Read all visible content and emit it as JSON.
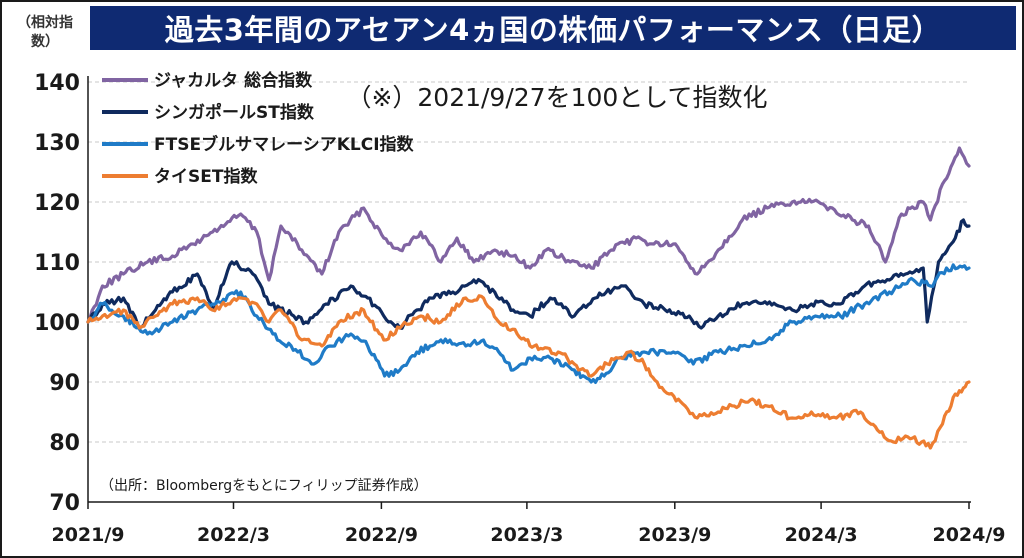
{
  "title": "過去3年間のアセアン4ヵ国の株価パフォーマンス（日足）",
  "y_unit": "（相対指数）",
  "note": "（※）2021/9/27を100として指数化",
  "source": "（出所：Bloombergをもとにフィリップ証券作成）",
  "colors": {
    "title_bg": "#0f2a72",
    "grid": "#c8c8c8",
    "axis": "#1a1a1a"
  },
  "chart_data": {
    "type": "line",
    "ylim": [
      70,
      140
    ],
    "y_ticks": [
      70,
      80,
      90,
      100,
      110,
      120,
      130,
      140
    ],
    "y_tick_labels": [
      "70",
      "80",
      "90",
      "100",
      "110",
      "120",
      "130",
      "140"
    ],
    "xlim": [
      "2021-09-27",
      "2024-09-27"
    ],
    "x_ticks": [
      "2021-09",
      "2022-03",
      "2022-09",
      "2023-03",
      "2023-09",
      "2024-03",
      "2024-09"
    ],
    "x_tick_labels": [
      "2021/9",
      "2022/3",
      "2022/9",
      "2023/3",
      "2023/9",
      "2024/3",
      "2024/9"
    ],
    "grid": "horizontal dashed",
    "legend_position": "top-left",
    "series": [
      {
        "name": "ジャカルタ 総合指数",
        "color": "#8064a2",
        "points": [
          [
            "2021-09-27",
            100
          ],
          [
            "2021-10-15",
            106
          ],
          [
            "2021-11-10",
            108
          ],
          [
            "2021-12-10",
            110
          ],
          [
            "2022-01-10",
            111
          ],
          [
            "2022-02-05",
            113
          ],
          [
            "2022-03-01",
            115
          ],
          [
            "2022-04-05",
            118
          ],
          [
            "2022-04-25",
            115
          ],
          [
            "2022-05-10",
            107
          ],
          [
            "2022-05-25",
            116
          ],
          [
            "2022-06-20",
            112
          ],
          [
            "2022-07-15",
            108
          ],
          [
            "2022-08-05",
            115
          ],
          [
            "2022-09-05",
            119
          ],
          [
            "2022-09-30",
            114
          ],
          [
            "2022-10-20",
            112
          ],
          [
            "2022-11-15",
            115
          ],
          [
            "2022-12-10",
            110
          ],
          [
            "2022-12-30",
            114
          ],
          [
            "2023-01-20",
            110
          ],
          [
            "2023-02-15",
            112
          ],
          [
            "2023-03-10",
            111
          ],
          [
            "2023-03-31",
            109
          ],
          [
            "2023-04-20",
            112
          ],
          [
            "2023-05-20",
            110
          ],
          [
            "2023-06-15",
            109
          ],
          [
            "2023-07-10",
            112
          ],
          [
            "2023-08-10",
            114
          ],
          [
            "2023-09-01",
            113
          ],
          [
            "2023-09-25",
            113
          ],
          [
            "2023-10-25",
            108
          ],
          [
            "2023-11-20",
            112
          ],
          [
            "2023-12-20",
            117
          ],
          [
            "2024-01-20",
            119
          ],
          [
            "2024-02-20",
            120
          ],
          [
            "2024-03-15",
            120
          ],
          [
            "2024-04-10",
            119
          ],
          [
            "2024-05-05",
            117
          ],
          [
            "2024-05-25",
            116
          ],
          [
            "2024-06-15",
            110
          ],
          [
            "2024-07-05",
            118
          ],
          [
            "2024-08-01",
            120
          ],
          [
            "2024-08-10",
            117
          ],
          [
            "2024-08-25",
            123
          ],
          [
            "2024-09-15",
            129
          ],
          [
            "2024-09-27",
            126
          ]
        ]
      },
      {
        "name": "シンガポールST指数",
        "color": "#0f2a5e",
        "points": [
          [
            "2021-09-27",
            100
          ],
          [
            "2021-10-15",
            103
          ],
          [
            "2021-11-10",
            104
          ],
          [
            "2021-11-30",
            99
          ],
          [
            "2021-12-20",
            102
          ],
          [
            "2022-01-10",
            105
          ],
          [
            "2022-02-10",
            108
          ],
          [
            "2022-03-01",
            102
          ],
          [
            "2022-03-25",
            110
          ],
          [
            "2022-04-20",
            108
          ],
          [
            "2022-05-10",
            103
          ],
          [
            "2022-06-10",
            101
          ],
          [
            "2022-06-25",
            100
          ],
          [
            "2022-07-20",
            103
          ],
          [
            "2022-08-20",
            106
          ],
          [
            "2022-09-10",
            104
          ],
          [
            "2022-09-30",
            101
          ],
          [
            "2022-10-20",
            99
          ],
          [
            "2022-11-10",
            102
          ],
          [
            "2022-12-01",
            104
          ],
          [
            "2022-12-25",
            105
          ],
          [
            "2023-01-20",
            107
          ],
          [
            "2023-02-15",
            105
          ],
          [
            "2023-03-10",
            102
          ],
          [
            "2023-03-31",
            101
          ],
          [
            "2023-04-25",
            104
          ],
          [
            "2023-05-25",
            101
          ],
          [
            "2023-06-20",
            104
          ],
          [
            "2023-07-25",
            106
          ],
          [
            "2023-08-20",
            103
          ],
          [
            "2023-09-15",
            102
          ],
          [
            "2023-10-15",
            101
          ],
          [
            "2023-10-30",
            99
          ],
          [
            "2023-11-20",
            101
          ],
          [
            "2023-12-20",
            103
          ],
          [
            "2024-01-20",
            103
          ],
          [
            "2024-02-20",
            102
          ],
          [
            "2024-03-15",
            103
          ],
          [
            "2024-04-20",
            103
          ],
          [
            "2024-05-20",
            106
          ],
          [
            "2024-06-20",
            107
          ],
          [
            "2024-07-10",
            108
          ],
          [
            "2024-08-01",
            109
          ],
          [
            "2024-08-06",
            100
          ],
          [
            "2024-08-20",
            110
          ],
          [
            "2024-09-10",
            114
          ],
          [
            "2024-09-20",
            117
          ],
          [
            "2024-09-27",
            116
          ]
        ]
      },
      {
        "name": "FTSEブルサマレーシアKLCI指数",
        "color": "#1f7bc7",
        "points": [
          [
            "2021-09-27",
            100
          ],
          [
            "2021-10-15",
            103
          ],
          [
            "2021-11-10",
            101
          ],
          [
            "2021-12-10",
            98
          ],
          [
            "2022-01-10",
            100
          ],
          [
            "2022-02-10",
            102
          ],
          [
            "2022-03-01",
            103
          ],
          [
            "2022-04-05",
            105
          ],
          [
            "2022-04-25",
            101
          ],
          [
            "2022-05-15",
            98
          ],
          [
            "2022-06-15",
            95
          ],
          [
            "2022-07-05",
            93
          ],
          [
            "2022-07-25",
            96
          ],
          [
            "2022-08-20",
            98
          ],
          [
            "2022-09-10",
            96
          ],
          [
            "2022-10-01",
            91
          ],
          [
            "2022-10-20",
            92
          ],
          [
            "2022-11-10",
            95
          ],
          [
            "2022-12-10",
            97
          ],
          [
            "2023-01-10",
            96
          ],
          [
            "2023-02-01",
            97
          ],
          [
            "2023-02-20",
            95
          ],
          [
            "2023-03-10",
            92
          ],
          [
            "2023-03-31",
            94
          ],
          [
            "2023-04-25",
            94
          ],
          [
            "2023-05-25",
            92
          ],
          [
            "2023-06-15",
            90
          ],
          [
            "2023-07-01",
            91
          ],
          [
            "2023-07-20",
            94
          ],
          [
            "2023-08-20",
            95
          ],
          [
            "2023-09-25",
            95
          ],
          [
            "2023-10-20",
            93
          ],
          [
            "2023-11-20",
            95
          ],
          [
            "2023-12-20",
            96
          ],
          [
            "2024-01-20",
            97
          ],
          [
            "2024-02-20",
            100
          ],
          [
            "2024-03-20",
            101
          ],
          [
            "2024-04-20",
            101
          ],
          [
            "2024-05-20",
            103
          ],
          [
            "2024-06-20",
            105
          ],
          [
            "2024-07-20",
            107
          ],
          [
            "2024-08-10",
            106
          ],
          [
            "2024-08-30",
            109
          ],
          [
            "2024-09-27",
            109
          ]
        ]
      },
      {
        "name": "タイSET指数",
        "color": "#ed7d31",
        "points": [
          [
            "2021-09-27",
            100
          ],
          [
            "2021-10-15",
            101
          ],
          [
            "2021-11-10",
            102
          ],
          [
            "2021-11-30",
            99
          ],
          [
            "2021-12-20",
            101
          ],
          [
            "2022-01-10",
            103
          ],
          [
            "2022-02-10",
            104
          ],
          [
            "2022-03-01",
            102
          ],
          [
            "2022-04-05",
            104
          ],
          [
            "2022-04-25",
            103
          ],
          [
            "2022-05-10",
            100
          ],
          [
            "2022-05-25",
            102
          ],
          [
            "2022-06-20",
            97
          ],
          [
            "2022-07-15",
            96
          ],
          [
            "2022-08-05",
            100
          ],
          [
            "2022-09-05",
            102
          ],
          [
            "2022-09-30",
            97
          ],
          [
            "2022-10-20",
            99
          ],
          [
            "2022-11-15",
            101
          ],
          [
            "2022-12-10",
            100
          ],
          [
            "2023-01-10",
            104
          ],
          [
            "2023-02-01",
            104
          ],
          [
            "2023-02-20",
            100
          ],
          [
            "2023-03-15",
            98
          ],
          [
            "2023-04-05",
            96
          ],
          [
            "2023-05-05",
            95
          ],
          [
            "2023-05-25",
            93
          ],
          [
            "2023-06-15",
            91
          ],
          [
            "2023-07-05",
            93
          ],
          [
            "2023-08-01",
            95
          ],
          [
            "2023-08-20",
            93
          ],
          [
            "2023-09-05",
            90
          ],
          [
            "2023-09-20",
            88
          ],
          [
            "2023-10-10",
            86
          ],
          [
            "2023-10-25",
            84
          ],
          [
            "2023-11-20",
            85
          ],
          [
            "2023-12-10",
            86
          ],
          [
            "2023-12-30",
            87
          ],
          [
            "2024-01-20",
            86
          ],
          [
            "2024-02-20",
            84
          ],
          [
            "2024-03-15",
            85
          ],
          [
            "2024-04-15",
            84
          ],
          [
            "2024-05-15",
            85
          ],
          [
            "2024-06-05",
            82
          ],
          [
            "2024-06-25",
            80
          ],
          [
            "2024-07-10",
            81
          ],
          [
            "2024-07-30",
            80
          ],
          [
            "2024-08-10",
            79
          ],
          [
            "2024-08-25",
            83
          ],
          [
            "2024-09-10",
            88
          ],
          [
            "2024-09-20",
            89
          ],
          [
            "2024-09-27",
            90
          ]
        ]
      }
    ]
  }
}
